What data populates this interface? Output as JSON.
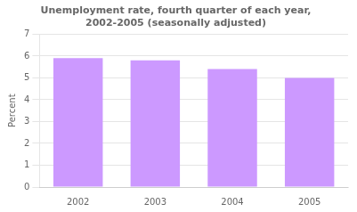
{
  "chart_data": {
    "type": "bar",
    "title": "Unemployment rate, fourth quarter of each year,\n2002-2005 (seasonally adjusted)",
    "y_label": "Percent",
    "categories": [
      "2002",
      "2003",
      "2004",
      "2005"
    ],
    "values": [
      5.9,
      5.8,
      5.4,
      5.0
    ],
    "color": "#cc99ff",
    "ylim": [
      0,
      7
    ],
    "yticks": [
      0,
      1,
      2,
      3,
      4,
      5,
      6,
      7
    ],
    "grid": true
  }
}
